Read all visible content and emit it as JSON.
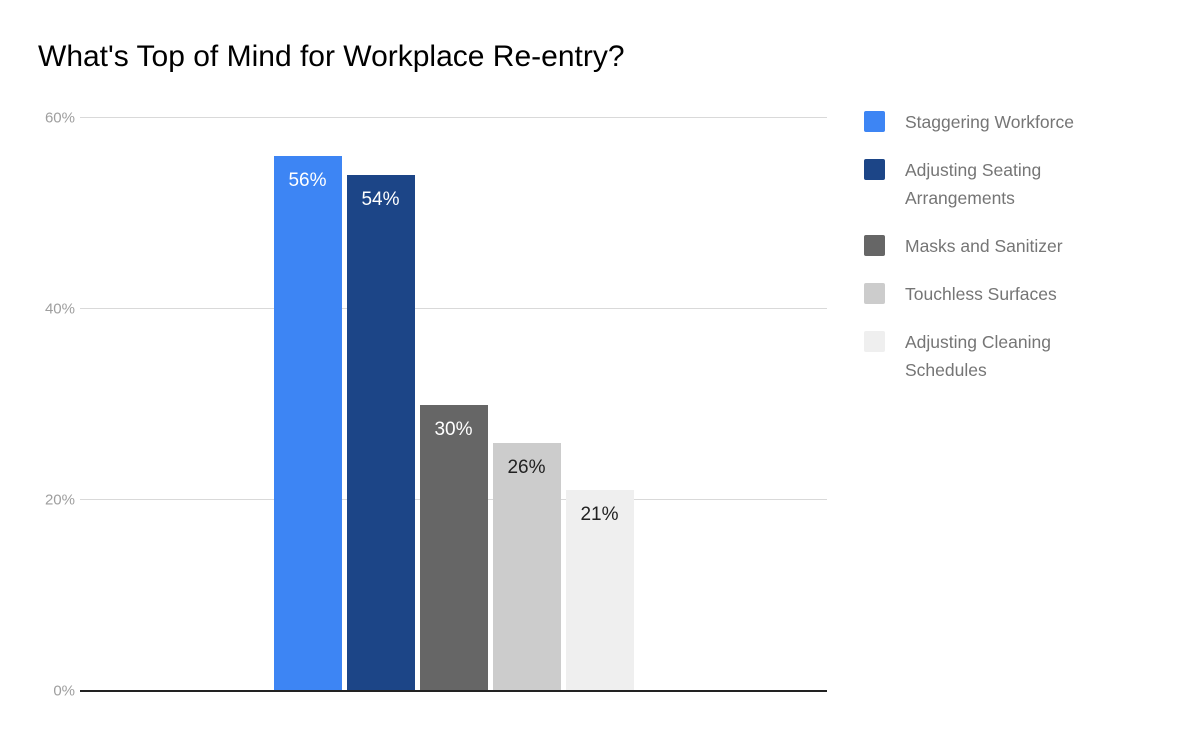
{
  "chart_data": {
    "type": "bar",
    "title": "What's Top of Mind for Workplace Re-entry?",
    "categories": [
      ""
    ],
    "series": [
      {
        "name": "Staggering Workforce",
        "values": [
          56
        ],
        "color": "#3d85f4",
        "label_color": "#ffffff"
      },
      {
        "name": "Adjusting Seating Arrangements",
        "values": [
          54
        ],
        "color": "#1c4587",
        "label_color": "#ffffff"
      },
      {
        "name": "Masks and Sanitizer",
        "values": [
          30
        ],
        "color": "#666666",
        "label_color": "#ffffff"
      },
      {
        "name": "Touchless Surfaces",
        "values": [
          26
        ],
        "color": "#cccccc",
        "label_color": "#212121"
      },
      {
        "name": "Adjusting Cleaning Schedules",
        "values": [
          21
        ],
        "color": "#efefef",
        "label_color": "#212121"
      }
    ],
    "value_suffix": "%",
    "xlabel": "",
    "ylabel": "",
    "ylim": [
      0,
      60
    ],
    "yticks": [
      0,
      20,
      40,
      60
    ],
    "ytick_labels": [
      "0%",
      "20%",
      "40%",
      "60%"
    ],
    "grid": true,
    "legend_position": "right"
  },
  "colors": {
    "background": "#ffffff",
    "gridline": "#d9d9d9",
    "axis_line": "#222222",
    "tick_label": "#9e9e9e",
    "legend_text": "#757575",
    "title_text": "#000000"
  }
}
